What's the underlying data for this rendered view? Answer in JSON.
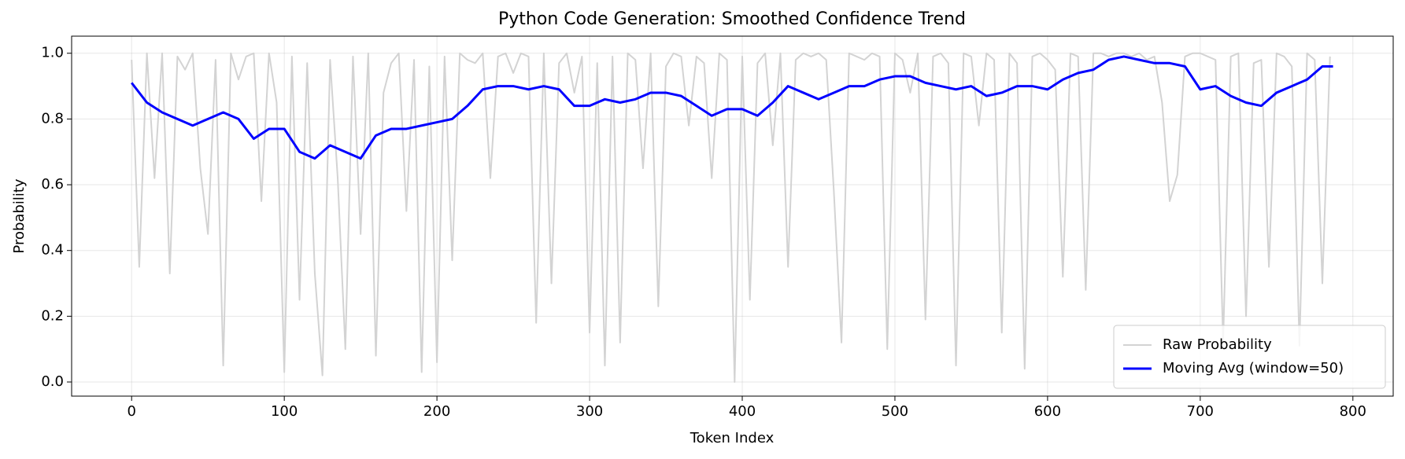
{
  "chart_data": {
    "type": "line",
    "title": "Python Code Generation: Smoothed Confidence Trend",
    "xlabel": "Token Index",
    "ylabel": "Probability",
    "xlim": [
      -39.3,
      826.4
    ],
    "ylim": [
      -0.043,
      1.052
    ],
    "xticks": [
      0,
      100,
      200,
      300,
      400,
      500,
      600,
      700,
      800
    ],
    "yticks": [
      {
        "value": 0,
        "label": "0.0"
      },
      0.2,
      0.4,
      0.6,
      0.8,
      {
        "value": 1,
        "label": "1.0"
      }
    ],
    "grid": true,
    "legend": "lower right",
    "series": [
      {
        "name": "Raw Probability",
        "color": "#d3d3d3",
        "x": [
          0,
          5,
          10,
          15,
          20,
          25,
          30,
          35,
          40,
          45,
          50,
          55,
          60,
          65,
          70,
          75,
          80,
          85,
          90,
          95,
          100,
          105,
          110,
          115,
          120,
          125,
          130,
          135,
          140,
          145,
          150,
          155,
          160,
          165,
          170,
          175,
          180,
          185,
          190,
          195,
          200,
          205,
          210,
          215,
          220,
          225,
          230,
          235,
          240,
          245,
          250,
          255,
          260,
          265,
          270,
          275,
          280,
          285,
          290,
          295,
          300,
          305,
          310,
          315,
          320,
          325,
          330,
          335,
          340,
          345,
          350,
          355,
          360,
          365,
          370,
          375,
          380,
          385,
          390,
          395,
          400,
          405,
          410,
          415,
          420,
          425,
          430,
          435,
          440,
          445,
          450,
          455,
          460,
          465,
          470,
          475,
          480,
          485,
          490,
          495,
          500,
          505,
          510,
          515,
          520,
          525,
          530,
          535,
          540,
          545,
          550,
          555,
          560,
          565,
          570,
          575,
          580,
          585,
          590,
          595,
          600,
          605,
          610,
          615,
          620,
          625,
          630,
          635,
          640,
          645,
          650,
          655,
          660,
          665,
          670,
          675,
          680,
          685,
          690,
          695,
          700,
          705,
          710,
          715,
          720,
          725,
          730,
          735,
          740,
          745,
          750,
          755,
          760,
          765,
          770,
          775,
          780,
          785
        ],
        "values": [
          0.98,
          0.35,
          1.0,
          0.62,
          1.0,
          0.33,
          0.99,
          0.95,
          1.0,
          0.65,
          0.45,
          0.98,
          0.05,
          1.0,
          0.92,
          0.99,
          1.0,
          0.55,
          1.0,
          0.85,
          0.03,
          0.99,
          0.25,
          0.97,
          0.33,
          0.02,
          0.98,
          0.62,
          0.1,
          0.99,
          0.45,
          1.0,
          0.08,
          0.88,
          0.97,
          1.0,
          0.52,
          0.98,
          0.03,
          0.96,
          0.06,
          0.99,
          0.37,
          1.0,
          0.98,
          0.97,
          1.0,
          0.62,
          0.99,
          1.0,
          0.94,
          1.0,
          0.99,
          0.18,
          1.0,
          0.3,
          0.97,
          1.0,
          0.88,
          0.99,
          0.15,
          0.97,
          0.05,
          0.99,
          0.12,
          1.0,
          0.98,
          0.65,
          1.0,
          0.23,
          0.96,
          1.0,
          0.99,
          0.78,
          0.99,
          0.97,
          0.62,
          1.0,
          0.98,
          0.0,
          0.99,
          0.25,
          0.97,
          1.0,
          0.72,
          1.0,
          0.35,
          0.98,
          1.0,
          0.99,
          1.0,
          0.98,
          0.58,
          0.12,
          1.0,
          0.99,
          0.98,
          1.0,
          0.99,
          0.1,
          1.0,
          0.98,
          0.88,
          1.0,
          0.19,
          0.99,
          1.0,
          0.97,
          0.05,
          1.0,
          0.99,
          0.78,
          1.0,
          0.98,
          0.15,
          1.0,
          0.97,
          0.04,
          0.99,
          1.0,
          0.98,
          0.95,
          0.32,
          1.0,
          0.99,
          0.28,
          1.0,
          1.0,
          0.99,
          1.0,
          1.0,
          0.99,
          1.0,
          0.98,
          0.99,
          0.85,
          0.55,
          0.63,
          0.99,
          1.0,
          1.0,
          0.99,
          0.98,
          0.12,
          0.99,
          1.0,
          0.2,
          0.97,
          0.98,
          0.35,
          1.0,
          0.99,
          0.96,
          0.11,
          1.0,
          0.98,
          0.3,
          0.99
        ]
      },
      {
        "name": "Moving Avg (window=50)",
        "color": "#0000ff",
        "x": [
          0,
          10,
          20,
          30,
          40,
          50,
          60,
          70,
          80,
          90,
          100,
          110,
          120,
          130,
          140,
          150,
          160,
          170,
          180,
          190,
          200,
          210,
          220,
          230,
          240,
          250,
          260,
          270,
          280,
          290,
          300,
          310,
          320,
          330,
          340,
          350,
          360,
          370,
          380,
          390,
          400,
          410,
          420,
          430,
          440,
          450,
          460,
          470,
          480,
          490,
          500,
          510,
          520,
          530,
          540,
          550,
          560,
          570,
          580,
          590,
          600,
          610,
          620,
          630,
          640,
          650,
          660,
          670,
          680,
          690,
          700,
          710,
          720,
          730,
          740,
          750,
          760,
          770,
          780,
          787
        ],
        "values": [
          0.91,
          0.85,
          0.82,
          0.8,
          0.78,
          0.8,
          0.82,
          0.8,
          0.74,
          0.77,
          0.77,
          0.7,
          0.68,
          0.72,
          0.7,
          0.68,
          0.75,
          0.77,
          0.77,
          0.78,
          0.79,
          0.8,
          0.84,
          0.89,
          0.9,
          0.9,
          0.89,
          0.9,
          0.89,
          0.84,
          0.84,
          0.86,
          0.85,
          0.86,
          0.88,
          0.88,
          0.87,
          0.84,
          0.81,
          0.83,
          0.83,
          0.81,
          0.85,
          0.9,
          0.88,
          0.86,
          0.88,
          0.9,
          0.9,
          0.92,
          0.93,
          0.93,
          0.91,
          0.9,
          0.89,
          0.9,
          0.87,
          0.88,
          0.9,
          0.9,
          0.89,
          0.92,
          0.94,
          0.95,
          0.98,
          0.99,
          0.98,
          0.97,
          0.97,
          0.96,
          0.89,
          0.9,
          0.87,
          0.85,
          0.84,
          0.88,
          0.9,
          0.92,
          0.96,
          0.96
        ]
      }
    ]
  }
}
